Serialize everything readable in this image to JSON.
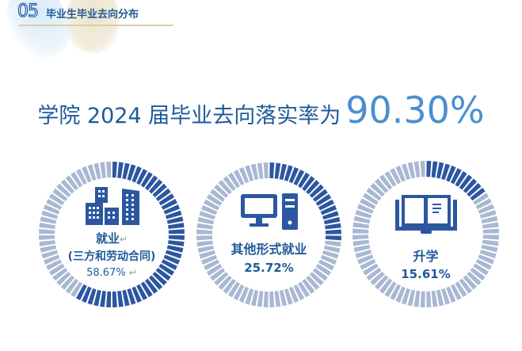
{
  "section": {
    "number": "05",
    "title": "毕业生毕业去向分布"
  },
  "headline": {
    "text": "学院 2024 届毕业去向落实率为",
    "value": "90.30%"
  },
  "colors": {
    "dark": "#2c57a0",
    "light": "#a9b8d2",
    "title": "#1f5a9a",
    "accent": "#4a8fd0"
  },
  "rings": [
    {
      "icon": "buildings-icon",
      "label": "就业",
      "sublabel": "(三方和劳动合同)",
      "value": "58.67%",
      "percent": 58.67,
      "return_mark": "↵"
    },
    {
      "icon": "computer-icon",
      "label": "其他形式就业",
      "value": "25.72%",
      "percent": 25.72
    },
    {
      "icon": "book-icon",
      "label": "升学",
      "value": "15.61%",
      "percent": 15.61
    }
  ]
}
